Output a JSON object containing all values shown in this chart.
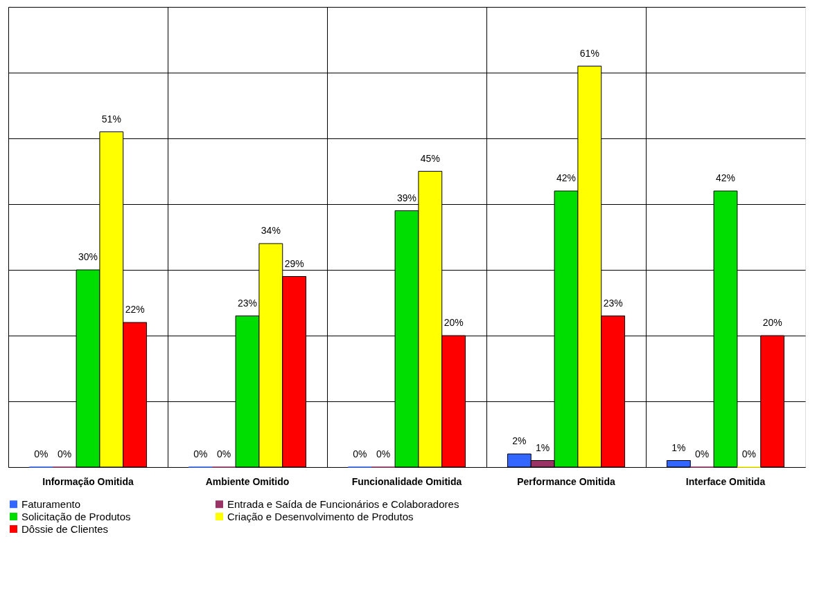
{
  "chart_data": {
    "type": "bar",
    "categories": [
      "Informação Omitida",
      "Ambiente Omitido",
      "Funcionalidade Omitida",
      "Performance Omitida",
      "Interface Omitida"
    ],
    "series": [
      {
        "name": "Faturamento",
        "color": "#3366ff",
        "values": [
          0,
          0,
          0,
          2,
          1
        ],
        "value_labels": [
          "0%",
          "0%",
          "0%",
          "2%",
          "1%"
        ]
      },
      {
        "name": "Entrada e Saída de Funcionários e Colaboradores",
        "color": "#993366",
        "values": [
          0,
          0,
          0,
          1,
          0
        ],
        "value_labels": [
          "0%",
          "0%",
          "0%",
          "1%",
          "0%"
        ]
      },
      {
        "name": "Solicitação de Produtos",
        "color": "#00dd00",
        "values": [
          30,
          23,
          39,
          42,
          42
        ],
        "value_labels": [
          "30%",
          "23%",
          "39%",
          "42%",
          "42%"
        ]
      },
      {
        "name": "Criação e Desenvolvimento de Produtos",
        "color": "#ffff00",
        "values": [
          51,
          34,
          45,
          61,
          0
        ],
        "value_labels": [
          "51%",
          "34%",
          "45%",
          "61%",
          "0%"
        ]
      },
      {
        "name": "Dôssie de Clientes",
        "color": "#ff0000",
        "values": [
          22,
          29,
          20,
          23,
          20
        ],
        "value_labels": [
          "22%",
          "29%",
          "20%",
          "23%",
          "20%"
        ]
      }
    ],
    "ylim": [
      0,
      70
    ],
    "yticks": [
      {
        "value": 0,
        "label": null
      },
      {
        "value": 10,
        "label": null
      },
      {
        "value": 20,
        "label": null
      },
      {
        "value": 30,
        "label": null
      },
      {
        "value": 40,
        "label": null
      },
      {
        "value": 50,
        "label": null
      },
      {
        "value": 60,
        "label": null
      },
      {
        "value": 70,
        "label": null
      }
    ],
    "tick_labels": "x",
    "grid": true,
    "legend": "bottom"
  }
}
